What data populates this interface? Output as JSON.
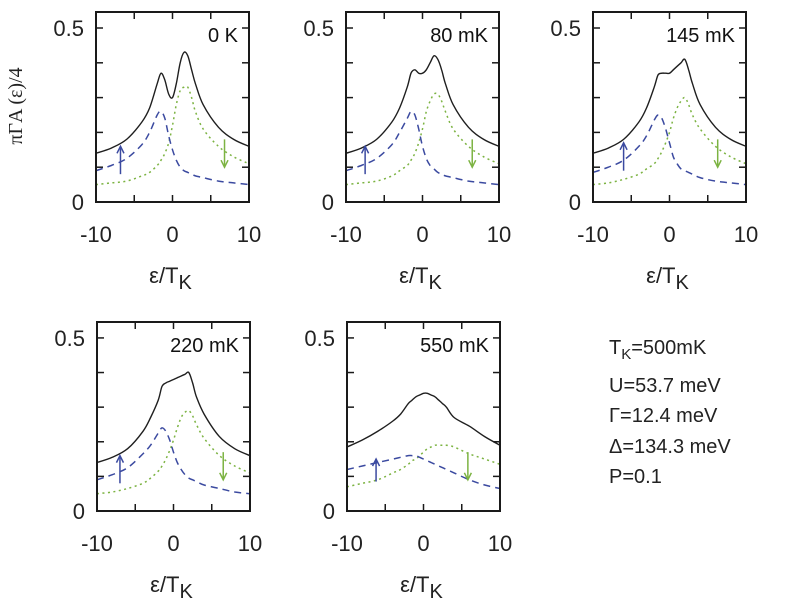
{
  "chart_data": {
    "type": "line",
    "title": "",
    "ylabel": "πΓA (ε)/4",
    "xlabel_main": "ε/T",
    "xlabel_sub": "K",
    "xlim": [
      -10,
      10
    ],
    "ylim": [
      0,
      0.546
    ],
    "xticks": [
      -10,
      0,
      10
    ],
    "xtick_labels": [
      "-10",
      "0",
      "10"
    ],
    "yticks": [
      0,
      0.5
    ],
    "ytick_labels": [
      "0",
      "0.5"
    ],
    "minor_yticks": [
      0.1,
      0.2,
      0.3,
      0.4
    ],
    "minor_xticks": [
      -5,
      5
    ],
    "grid": false,
    "series_styles": [
      {
        "name": "total",
        "color": "#1f1f1f",
        "dash": "solid"
      },
      {
        "name": "spin-up",
        "color": "#3b4aa0",
        "dash": "dashed"
      },
      {
        "name": "spin-down",
        "color": "#7cb342",
        "dash": "dotted"
      }
    ],
    "x": [
      -10,
      -8,
      -6,
      -4,
      -3,
      -2,
      -1.5,
      -1,
      -0.5,
      0,
      0.5,
      1,
      1.5,
      2,
      2.5,
      3,
      4,
      6,
      8,
      10
    ],
    "panels": [
      {
        "label": "0 K",
        "series": [
          {
            "name": "total",
            "values": [
              0.14,
              0.155,
              0.18,
              0.23,
              0.27,
              0.34,
              0.37,
              0.35,
              0.31,
              0.3,
              0.34,
              0.4,
              0.43,
              0.42,
              0.38,
              0.34,
              0.28,
              0.215,
              0.18,
              0.16
            ]
          },
          {
            "name": "spin-up",
            "values": [
              0.09,
              0.105,
              0.125,
              0.165,
              0.2,
              0.25,
              0.26,
              0.24,
              0.19,
              0.15,
              0.12,
              0.1,
              0.09,
              0.085,
              0.08,
              0.075,
              0.07,
              0.06,
              0.055,
              0.05
            ]
          },
          {
            "name": "spin-down",
            "values": [
              0.05,
              0.055,
              0.06,
              0.075,
              0.085,
              0.105,
              0.12,
              0.14,
              0.17,
              0.22,
              0.28,
              0.32,
              0.33,
              0.33,
              0.3,
              0.26,
              0.21,
              0.16,
              0.13,
              0.11
            ]
          }
        ],
        "arrows": [
          {
            "direction": "up",
            "x": -6.8,
            "y_from": 0.08,
            "y_to": 0.16
          },
          {
            "direction": "down",
            "x": 6.8,
            "y_from": 0.18,
            "y_to": 0.1
          }
        ]
      },
      {
        "label": "80 mK",
        "series": [
          {
            "name": "total",
            "values": [
              0.14,
              0.155,
              0.18,
              0.23,
              0.27,
              0.33,
              0.37,
              0.38,
              0.37,
              0.37,
              0.38,
              0.4,
              0.42,
              0.41,
              0.38,
              0.34,
              0.28,
              0.215,
              0.18,
              0.16
            ]
          },
          {
            "name": "spin-up",
            "values": [
              0.09,
              0.105,
              0.125,
              0.165,
              0.2,
              0.24,
              0.26,
              0.25,
              0.21,
              0.16,
              0.125,
              0.105,
              0.095,
              0.085,
              0.08,
              0.075,
              0.07,
              0.06,
              0.055,
              0.05
            ]
          },
          {
            "name": "spin-down",
            "values": [
              0.05,
              0.055,
              0.06,
              0.075,
              0.09,
              0.105,
              0.12,
              0.14,
              0.17,
              0.21,
              0.26,
              0.29,
              0.31,
              0.31,
              0.29,
              0.26,
              0.21,
              0.16,
              0.13,
              0.11
            ]
          }
        ],
        "arrows": [
          {
            "direction": "up",
            "x": -7.5,
            "y_from": 0.08,
            "y_to": 0.16
          },
          {
            "direction": "down",
            "x": 6.5,
            "y_from": 0.18,
            "y_to": 0.1
          }
        ]
      },
      {
        "label": "145 mK",
        "series": [
          {
            "name": "total",
            "values": [
              0.14,
              0.155,
              0.18,
              0.23,
              0.27,
              0.33,
              0.365,
              0.37,
              0.37,
              0.37,
              0.38,
              0.39,
              0.4,
              0.41,
              0.38,
              0.34,
              0.28,
              0.215,
              0.18,
              0.16
            ]
          },
          {
            "name": "spin-up",
            "values": [
              0.085,
              0.1,
              0.12,
              0.16,
              0.19,
              0.235,
              0.25,
              0.24,
              0.21,
              0.17,
              0.13,
              0.11,
              0.095,
              0.09,
              0.085,
              0.08,
              0.07,
              0.06,
              0.055,
              0.05
            ]
          },
          {
            "name": "spin-down",
            "values": [
              0.05,
              0.055,
              0.065,
              0.08,
              0.095,
              0.11,
              0.125,
              0.145,
              0.17,
              0.2,
              0.24,
              0.27,
              0.29,
              0.3,
              0.28,
              0.25,
              0.21,
              0.16,
              0.13,
              0.11
            ]
          }
        ],
        "arrows": [
          {
            "direction": "up",
            "x": -6.0,
            "y_from": 0.09,
            "y_to": 0.17
          },
          {
            "direction": "down",
            "x": 6.3,
            "y_from": 0.18,
            "y_to": 0.1
          }
        ]
      },
      {
        "label": "220 mK",
        "series": [
          {
            "name": "total",
            "values": [
              0.14,
              0.155,
              0.18,
              0.23,
              0.27,
              0.32,
              0.36,
              0.37,
              0.375,
              0.38,
              0.385,
              0.39,
              0.395,
              0.4,
              0.37,
              0.33,
              0.28,
              0.215,
              0.18,
              0.16
            ]
          },
          {
            "name": "spin-up",
            "values": [
              0.09,
              0.105,
              0.125,
              0.165,
              0.19,
              0.225,
              0.24,
              0.23,
              0.205,
              0.17,
              0.14,
              0.12,
              0.105,
              0.095,
              0.09,
              0.085,
              0.075,
              0.065,
              0.055,
              0.05
            ]
          },
          {
            "name": "spin-down",
            "values": [
              0.05,
              0.055,
              0.065,
              0.08,
              0.095,
              0.115,
              0.13,
              0.15,
              0.175,
              0.205,
              0.24,
              0.27,
              0.285,
              0.29,
              0.275,
              0.25,
              0.21,
              0.16,
              0.13,
              0.11
            ]
          }
        ],
        "arrows": [
          {
            "direction": "up",
            "x": -7.0,
            "y_from": 0.08,
            "y_to": 0.16
          },
          {
            "direction": "down",
            "x": 6.5,
            "y_from": 0.17,
            "y_to": 0.09
          }
        ]
      },
      {
        "label": "550 mK",
        "series": [
          {
            "name": "total",
            "values": [
              0.185,
              0.205,
              0.23,
              0.26,
              0.28,
              0.31,
              0.32,
              0.33,
              0.335,
              0.34,
              0.34,
              0.335,
              0.33,
              0.32,
              0.31,
              0.3,
              0.27,
              0.245,
              0.215,
              0.19
            ]
          },
          {
            "name": "spin-up",
            "values": [
              0.12,
              0.13,
              0.14,
              0.15,
              0.155,
              0.16,
              0.16,
              0.16,
              0.155,
              0.15,
              0.145,
              0.14,
              0.135,
              0.13,
              0.125,
              0.12,
              0.11,
              0.09,
              0.075,
              0.065
            ]
          },
          {
            "name": "spin-down",
            "values": [
              0.07,
              0.08,
              0.09,
              0.11,
              0.12,
              0.135,
              0.145,
              0.15,
              0.16,
              0.17,
              0.18,
              0.185,
              0.19,
              0.19,
              0.19,
              0.19,
              0.185,
              0.165,
              0.15,
              0.135
            ]
          }
        ],
        "arrows": [
          {
            "direction": "up",
            "x": -6.2,
            "y_from": 0.085,
            "y_to": 0.15
          },
          {
            "direction": "down",
            "x": 5.8,
            "y_from": 0.17,
            "y_to": 0.09
          }
        ]
      }
    ]
  },
  "parameters": {
    "tk_main": "T",
    "tk_sub": "K",
    "tk_value": "=500mK",
    "u": "U=53.7 meV",
    "gamma": "Γ=12.4 meV",
    "delta": "Δ=134.3 meV",
    "p": "P=0.1"
  }
}
